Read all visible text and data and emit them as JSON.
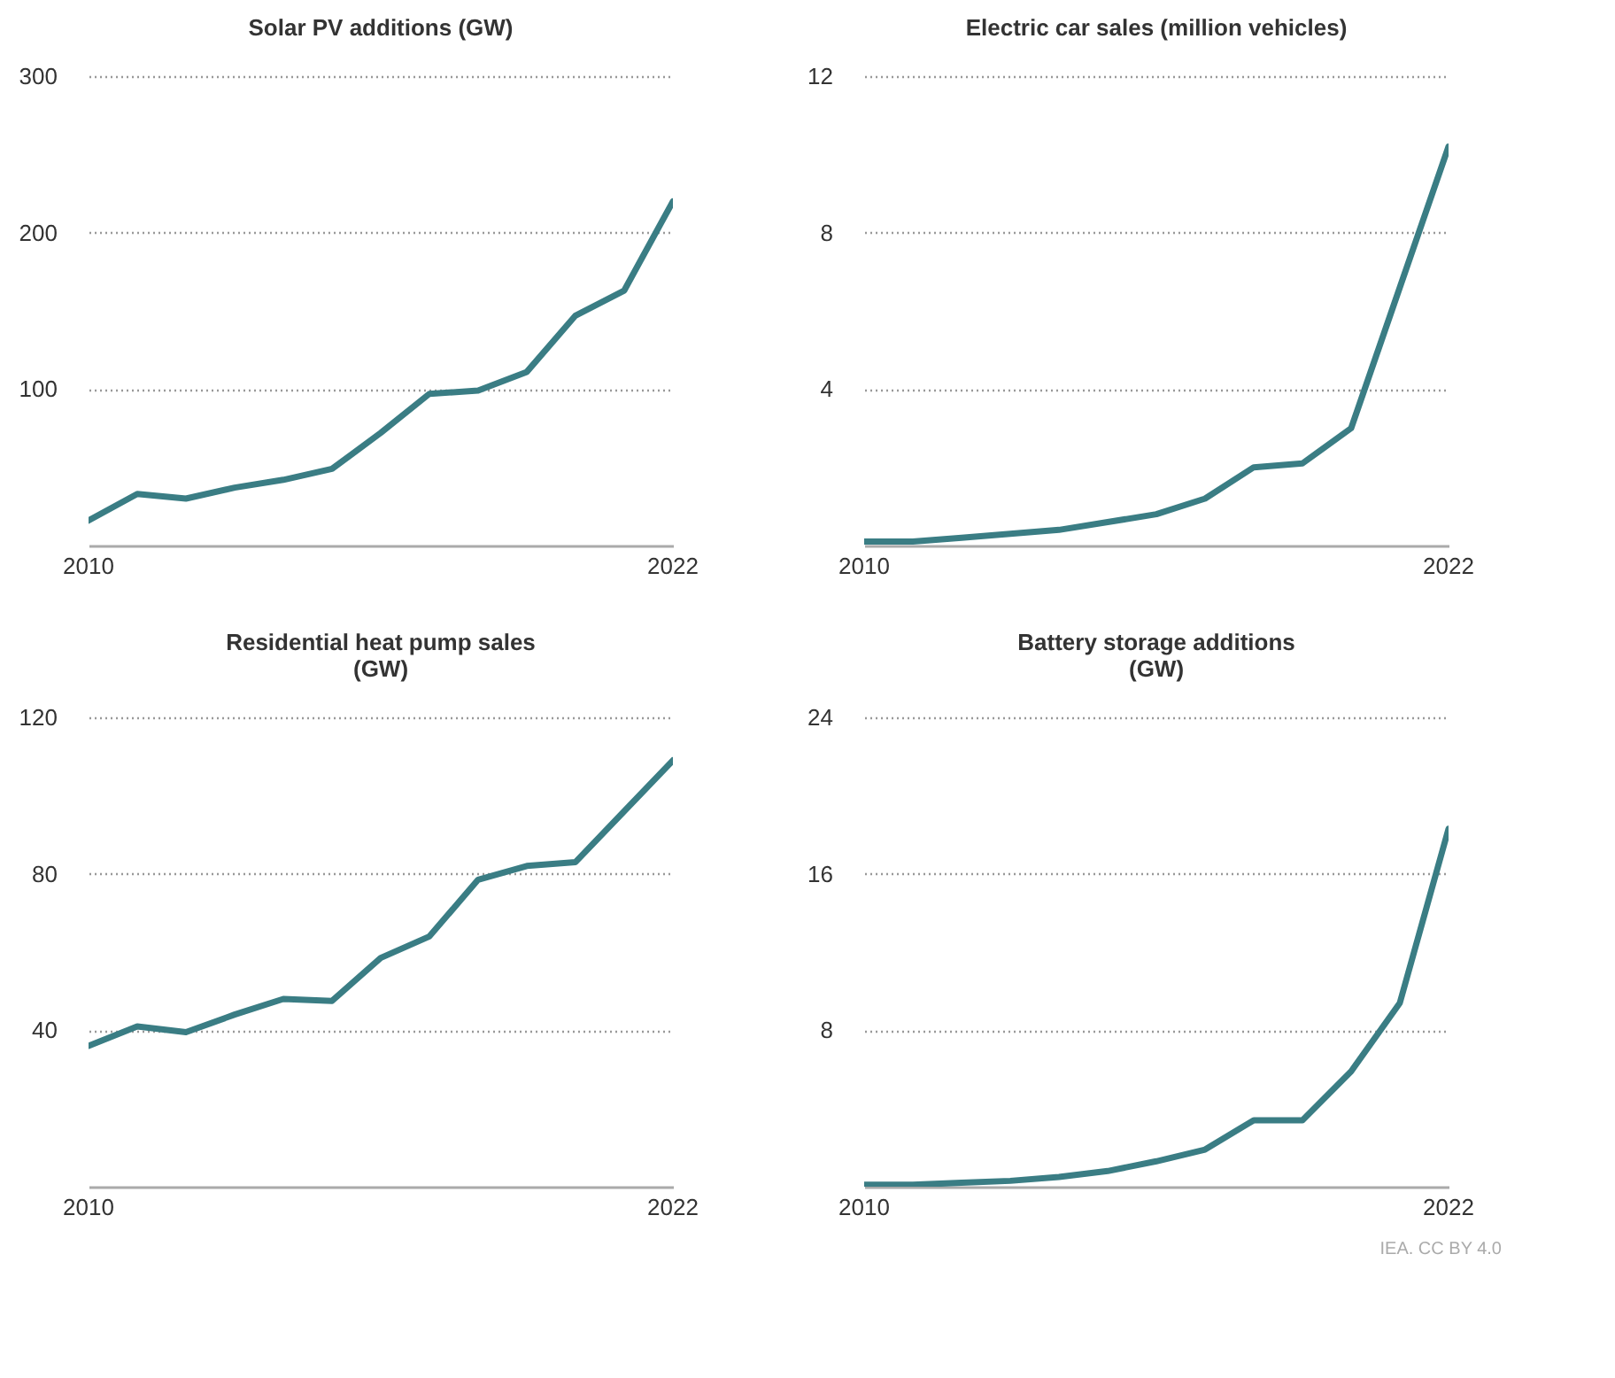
{
  "chart_data": [
    {
      "type": "line",
      "title": "Solar PV additions (GW)",
      "x": [
        2010,
        2011,
        2012,
        2013,
        2014,
        2015,
        2016,
        2017,
        2018,
        2019,
        2020,
        2021,
        2022
      ],
      "series": [
        {
          "color": "#3a7d84",
          "values": [
            16,
            33,
            30,
            37,
            42,
            49,
            72,
            97,
            99,
            111,
            147,
            163,
            220
          ]
        }
      ],
      "xlim": [
        2010,
        2022
      ],
      "xticks": [
        2010,
        2022
      ],
      "ylim": [
        0,
        300
      ],
      "yticks": [
        100,
        200,
        300
      ],
      "grid": "y",
      "marker": "none",
      "line_style": "solid"
    },
    {
      "type": "line",
      "title": "Electric car sales (million vehicles)",
      "x": [
        2010,
        2011,
        2012,
        2013,
        2014,
        2015,
        2016,
        2017,
        2018,
        2019,
        2020,
        2021,
        2022
      ],
      "series": [
        {
          "color": "#3a7d84",
          "values": [
            0.1,
            0.1,
            0.2,
            0.3,
            0.4,
            0.6,
            0.8,
            1.2,
            2.0,
            2.1,
            3.0,
            6.6,
            10.2
          ]
        }
      ],
      "xlim": [
        2010,
        2022
      ],
      "xticks": [
        2010,
        2022
      ],
      "ylim": [
        0,
        12
      ],
      "yticks": [
        4,
        8,
        12
      ],
      "grid": "y",
      "marker": "none",
      "line_style": "solid"
    },
    {
      "type": "line",
      "title": "Residential heat pump sales (GW)",
      "x": [
        2010,
        2011,
        2012,
        2013,
        2014,
        2015,
        2016,
        2017,
        2018,
        2019,
        2020,
        2021,
        2022
      ],
      "series": [
        {
          "color": "#3a7d84",
          "values": [
            36,
            41,
            39.5,
            44,
            48,
            47.5,
            58.5,
            64,
            78.5,
            82,
            83,
            96,
            109
          ]
        }
      ],
      "xlim": [
        2010,
        2022
      ],
      "xticks": [
        2010,
        2022
      ],
      "ylim": [
        0,
        120
      ],
      "yticks": [
        40,
        80,
        120
      ],
      "grid": "y",
      "marker": "none",
      "line_style": "solid"
    },
    {
      "type": "line",
      "title": "Battery storage additions (GW)",
      "x": [
        2010,
        2011,
        2012,
        2013,
        2014,
        2015,
        2016,
        2017,
        2018,
        2019,
        2020,
        2021,
        2022
      ],
      "series": [
        {
          "color": "#3a7d84",
          "values": [
            0.1,
            0.1,
            0.2,
            0.3,
            0.5,
            0.8,
            1.3,
            1.9,
            3.4,
            3.4,
            5.9,
            9.4,
            18.3
          ]
        }
      ],
      "xlim": [
        2010,
        2022
      ],
      "xticks": [
        2010,
        2022
      ],
      "ylim": [
        0,
        24
      ],
      "yticks": [
        8,
        16,
        24
      ],
      "grid": "y",
      "marker": "none",
      "line_style": "solid",
      "annotations": [
        "IEA. CC BY 4.0"
      ]
    }
  ]
}
